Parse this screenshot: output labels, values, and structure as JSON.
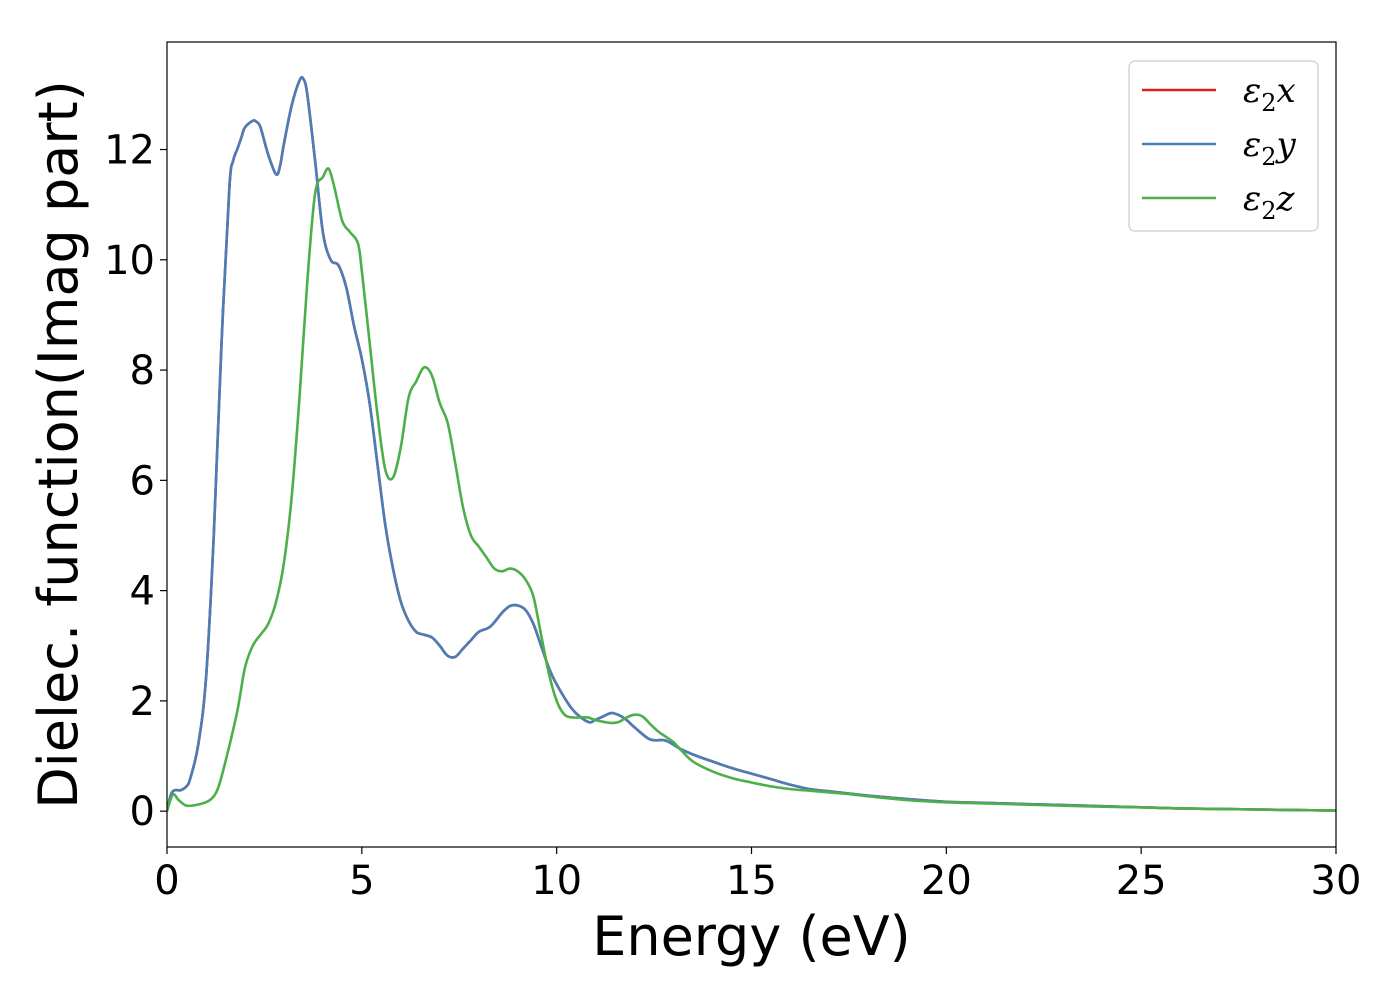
{
  "chart_data": {
    "type": "line",
    "xlabel": "Energy (eV)",
    "ylabel": "Dielec. function(Imag part)",
    "xlim": [
      0,
      30
    ],
    "ylim": [
      -0.65,
      13.95
    ],
    "xticks": [
      0,
      5,
      10,
      15,
      20,
      25,
      30
    ],
    "yticks": [
      0,
      2,
      4,
      6,
      8,
      10,
      12
    ],
    "grid": false,
    "legend_position": "top-right",
    "series": [
      {
        "name": "ε2x",
        "legend_symbol": "ε",
        "legend_sub": "2",
        "legend_var": "x",
        "color": "#e41a1c",
        "x": [
          0,
          0.1,
          0.2,
          0.35,
          0.5,
          0.6,
          0.8,
          1.0,
          1.2,
          1.4,
          1.6,
          1.7,
          1.8,
          1.9,
          2.0,
          2.2,
          2.3,
          2.4,
          2.6,
          2.8,
          2.9,
          3.0,
          3.2,
          3.4,
          3.5,
          3.6,
          3.8,
          4.0,
          4.2,
          4.4,
          4.6,
          4.8,
          5.0,
          5.2,
          5.4,
          5.6,
          5.8,
          6.0,
          6.2,
          6.4,
          6.6,
          6.8,
          7.0,
          7.2,
          7.4,
          7.6,
          7.8,
          8.0,
          8.3,
          8.6,
          8.8,
          9.0,
          9.2,
          9.4,
          9.6,
          9.8,
          10.0,
          10.4,
          10.8,
          11.0,
          11.2,
          11.4,
          11.6,
          11.8,
          12.0,
          12.4,
          12.8,
          13.2,
          13.6,
          14.0,
          14.5,
          15.0,
          15.5,
          16.0,
          16.5,
          17.0,
          17.5,
          18.0,
          19.0,
          20.0,
          21.0,
          22.0,
          23.0,
          24.0,
          25.0,
          26.0,
          27.0,
          28.0,
          29.0,
          30.0
        ],
        "y": [
          0,
          0.3,
          0.38,
          0.38,
          0.45,
          0.6,
          1.2,
          2.4,
          5.0,
          8.5,
          11.3,
          11.8,
          12.0,
          12.2,
          12.4,
          12.52,
          12.5,
          12.4,
          11.9,
          11.55,
          11.7,
          12.1,
          12.8,
          13.25,
          13.28,
          13.0,
          11.8,
          10.5,
          10.0,
          9.9,
          9.5,
          8.8,
          8.2,
          7.4,
          6.3,
          5.2,
          4.4,
          3.8,
          3.45,
          3.25,
          3.2,
          3.15,
          3.0,
          2.82,
          2.8,
          2.95,
          3.1,
          3.25,
          3.35,
          3.6,
          3.72,
          3.73,
          3.65,
          3.4,
          3.0,
          2.6,
          2.3,
          1.85,
          1.62,
          1.66,
          1.72,
          1.78,
          1.74,
          1.65,
          1.52,
          1.3,
          1.28,
          1.12,
          1.0,
          0.9,
          0.78,
          0.68,
          0.58,
          0.48,
          0.4,
          0.36,
          0.32,
          0.28,
          0.22,
          0.17,
          0.15,
          0.13,
          0.11,
          0.09,
          0.07,
          0.05,
          0.04,
          0.03,
          0.02,
          0.01
        ]
      },
      {
        "name": "ε2y",
        "legend_symbol": "ε",
        "legend_sub": "2",
        "legend_var": "y",
        "color": "#4a7eb8",
        "x": [
          0,
          0.1,
          0.2,
          0.35,
          0.5,
          0.6,
          0.8,
          1.0,
          1.2,
          1.4,
          1.6,
          1.7,
          1.8,
          1.9,
          2.0,
          2.2,
          2.3,
          2.4,
          2.6,
          2.8,
          2.9,
          3.0,
          3.2,
          3.4,
          3.5,
          3.6,
          3.8,
          4.0,
          4.2,
          4.4,
          4.6,
          4.8,
          5.0,
          5.2,
          5.4,
          5.6,
          5.8,
          6.0,
          6.2,
          6.4,
          6.6,
          6.8,
          7.0,
          7.2,
          7.4,
          7.6,
          7.8,
          8.0,
          8.3,
          8.6,
          8.8,
          9.0,
          9.2,
          9.4,
          9.6,
          9.8,
          10.0,
          10.4,
          10.8,
          11.0,
          11.2,
          11.4,
          11.6,
          11.8,
          12.0,
          12.4,
          12.8,
          13.2,
          13.6,
          14.0,
          14.5,
          15.0,
          15.5,
          16.0,
          16.5,
          17.0,
          17.5,
          18.0,
          19.0,
          20.0,
          21.0,
          22.0,
          23.0,
          24.0,
          25.0,
          26.0,
          27.0,
          28.0,
          29.0,
          30.0
        ],
        "y": [
          0,
          0.3,
          0.38,
          0.38,
          0.45,
          0.6,
          1.2,
          2.4,
          5.0,
          8.5,
          11.3,
          11.8,
          12.0,
          12.2,
          12.4,
          12.52,
          12.5,
          12.4,
          11.9,
          11.55,
          11.7,
          12.1,
          12.8,
          13.25,
          13.28,
          13.0,
          11.8,
          10.5,
          10.0,
          9.9,
          9.5,
          8.8,
          8.2,
          7.4,
          6.3,
          5.2,
          4.4,
          3.8,
          3.45,
          3.25,
          3.2,
          3.15,
          3.0,
          2.82,
          2.8,
          2.95,
          3.1,
          3.25,
          3.35,
          3.6,
          3.72,
          3.73,
          3.65,
          3.4,
          3.0,
          2.6,
          2.3,
          1.85,
          1.62,
          1.66,
          1.72,
          1.78,
          1.74,
          1.65,
          1.52,
          1.3,
          1.28,
          1.12,
          1.0,
          0.9,
          0.78,
          0.68,
          0.58,
          0.48,
          0.4,
          0.36,
          0.32,
          0.28,
          0.22,
          0.17,
          0.15,
          0.13,
          0.11,
          0.09,
          0.07,
          0.05,
          0.04,
          0.03,
          0.02,
          0.01
        ]
      },
      {
        "name": "ε2z",
        "legend_symbol": "ε",
        "legend_sub": "2",
        "legend_var": "z",
        "color": "#4daf4a",
        "x": [
          0,
          0.15,
          0.3,
          0.5,
          0.8,
          1.1,
          1.3,
          1.5,
          1.8,
          2.0,
          2.2,
          2.4,
          2.6,
          2.8,
          3.0,
          3.2,
          3.4,
          3.6,
          3.8,
          4.0,
          4.15,
          4.3,
          4.5,
          4.7,
          4.9,
          5.0,
          5.2,
          5.4,
          5.6,
          5.8,
          6.0,
          6.2,
          6.4,
          6.6,
          6.8,
          7.0,
          7.2,
          7.4,
          7.6,
          7.8,
          8.0,
          8.2,
          8.4,
          8.6,
          8.8,
          9.0,
          9.2,
          9.4,
          9.6,
          9.8,
          10.0,
          10.2,
          10.4,
          10.6,
          10.8,
          11.0,
          11.2,
          11.4,
          11.6,
          11.8,
          12.0,
          12.2,
          12.4,
          12.6,
          12.8,
          13.0,
          13.2,
          13.5,
          14.0,
          14.5,
          15.0,
          15.5,
          16.0,
          16.5,
          17.0,
          17.5,
          18.0,
          19.0,
          20.0,
          21.0,
          22.0,
          23.0,
          24.0,
          25.0,
          26.0,
          27.0,
          28.0,
          29.0,
          30.0
        ],
        "y": [
          0,
          0.3,
          0.2,
          0.1,
          0.12,
          0.2,
          0.4,
          0.9,
          1.8,
          2.6,
          3.0,
          3.2,
          3.4,
          3.8,
          4.5,
          5.7,
          7.5,
          9.6,
          11.2,
          11.5,
          11.65,
          11.3,
          10.7,
          10.5,
          10.3,
          9.8,
          8.5,
          7.2,
          6.2,
          6.05,
          6.6,
          7.5,
          7.8,
          8.05,
          7.9,
          7.4,
          7.05,
          6.3,
          5.5,
          5.0,
          4.8,
          4.6,
          4.4,
          4.35,
          4.4,
          4.35,
          4.2,
          3.9,
          3.2,
          2.5,
          2.0,
          1.75,
          1.7,
          1.7,
          1.7,
          1.65,
          1.62,
          1.6,
          1.62,
          1.7,
          1.75,
          1.72,
          1.58,
          1.45,
          1.35,
          1.25,
          1.1,
          0.9,
          0.72,
          0.6,
          0.52,
          0.45,
          0.4,
          0.37,
          0.34,
          0.31,
          0.27,
          0.2,
          0.16,
          0.14,
          0.12,
          0.1,
          0.08,
          0.07,
          0.05,
          0.04,
          0.03,
          0.02,
          0.01
        ]
      }
    ]
  }
}
